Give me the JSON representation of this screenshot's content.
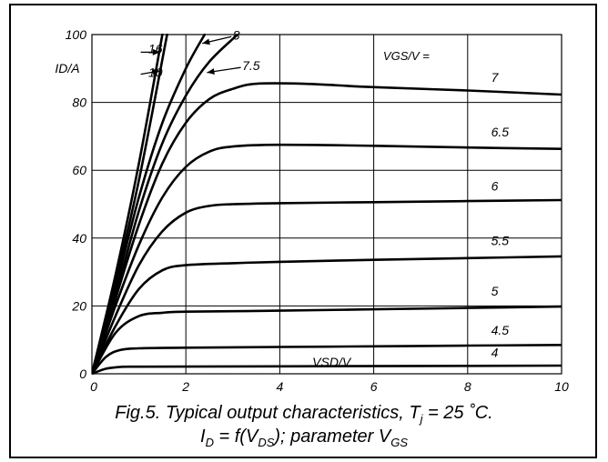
{
  "chart_data": {
    "type": "line",
    "title": "",
    "xlabel": "VSD/V",
    "ylabel": "ID/A",
    "xlim": [
      0,
      10
    ],
    "ylim": [
      0,
      100
    ],
    "x_ticks": [
      0,
      2,
      4,
      6,
      8,
      10
    ],
    "y_ticks": [
      0,
      20,
      40,
      60,
      80,
      100
    ],
    "grid": true,
    "legend_title": "VGS/V =",
    "series": [
      {
        "name": "16",
        "points": [
          [
            0,
            0
          ],
          [
            0.5,
            29
          ],
          [
            1,
            62
          ],
          [
            1.5,
            100
          ]
        ]
      },
      {
        "name": "10",
        "points": [
          [
            0,
            0
          ],
          [
            0.5,
            27
          ],
          [
            1,
            57
          ],
          [
            1.6,
            100
          ]
        ]
      },
      {
        "name": "8",
        "points": [
          [
            0,
            0
          ],
          [
            0.5,
            25
          ],
          [
            1,
            52
          ],
          [
            1.5,
            74
          ],
          [
            2,
            90
          ],
          [
            2.4,
            100
          ]
        ]
      },
      {
        "name": "7.5",
        "points": [
          [
            0,
            0
          ],
          [
            0.5,
            23
          ],
          [
            1,
            48
          ],
          [
            1.5,
            68
          ],
          [
            2,
            82
          ],
          [
            2.5,
            92
          ],
          [
            3.1,
            100
          ]
        ]
      },
      {
        "name": "7",
        "points": [
          [
            0,
            0
          ],
          [
            0.5,
            22
          ],
          [
            1,
            44
          ],
          [
            1.5,
            62
          ],
          [
            2,
            74
          ],
          [
            2.5,
            81
          ],
          [
            3,
            84
          ],
          [
            3.5,
            85.5
          ],
          [
            4.5,
            85.5
          ],
          [
            6,
            84.5
          ],
          [
            8,
            83.5
          ],
          [
            10,
            82.3
          ]
        ]
      },
      {
        "name": "6.5",
        "points": [
          [
            0,
            0
          ],
          [
            0.5,
            20
          ],
          [
            1,
            38
          ],
          [
            1.5,
            52
          ],
          [
            2,
            61
          ],
          [
            2.5,
            65.5
          ],
          [
            3,
            67
          ],
          [
            4,
            67.5
          ],
          [
            6,
            67.2
          ],
          [
            8,
            66.7
          ],
          [
            10,
            66.3
          ]
        ]
      },
      {
        "name": "6",
        "points": [
          [
            0,
            0
          ],
          [
            0.5,
            17
          ],
          [
            1,
            32
          ],
          [
            1.5,
            42
          ],
          [
            2,
            47.5
          ],
          [
            2.5,
            49.5
          ],
          [
            3,
            50
          ],
          [
            4,
            50.3
          ],
          [
            6,
            50.6
          ],
          [
            8,
            50.9
          ],
          [
            10,
            51.2
          ]
        ]
      },
      {
        "name": "5.5",
        "points": [
          [
            0,
            0
          ],
          [
            0.5,
            14
          ],
          [
            1,
            25
          ],
          [
            1.5,
            30.5
          ],
          [
            2,
            32
          ],
          [
            3,
            32.6
          ],
          [
            4,
            33
          ],
          [
            6,
            33.6
          ],
          [
            8,
            34.1
          ],
          [
            10,
            34.6
          ]
        ]
      },
      {
        "name": "5",
        "points": [
          [
            0,
            0
          ],
          [
            0.5,
            12
          ],
          [
            1,
            17
          ],
          [
            1.5,
            18
          ],
          [
            2,
            18.3
          ],
          [
            4,
            18.6
          ],
          [
            6,
            19
          ],
          [
            8,
            19.4
          ],
          [
            10,
            19.8
          ]
        ]
      },
      {
        "name": "4.5",
        "points": [
          [
            0,
            0
          ],
          [
            0.3,
            5
          ],
          [
            0.6,
            7
          ],
          [
            1,
            7.5
          ],
          [
            2,
            7.7
          ],
          [
            4,
            7.9
          ],
          [
            6,
            8.1
          ],
          [
            8,
            8.3
          ],
          [
            10,
            8.5
          ]
        ]
      },
      {
        "name": "4",
        "points": [
          [
            0,
            0
          ],
          [
            0.3,
            1.5
          ],
          [
            0.6,
            2
          ],
          [
            1,
            2.1
          ],
          [
            4,
            2.2
          ],
          [
            7,
            2.3
          ],
          [
            10,
            2.4
          ]
        ]
      }
    ],
    "curve_labels": [
      {
        "text": "16",
        "x": 1.2,
        "y": 94.5
      },
      {
        "text": "10",
        "x": 1.2,
        "y": 87.5
      },
      {
        "text": "8",
        "x": 3.0,
        "y": 98.5
      },
      {
        "text": "7.5",
        "x": 3.2,
        "y": 89.5
      },
      {
        "text": "7",
        "x": 8.5,
        "y": 86
      },
      {
        "text": "6.5",
        "x": 8.5,
        "y": 70
      },
      {
        "text": "6",
        "x": 8.5,
        "y": 54
      },
      {
        "text": "5.5",
        "x": 8.5,
        "y": 38
      },
      {
        "text": "5",
        "x": 8.5,
        "y": 23
      },
      {
        "text": "4.5",
        "x": 8.5,
        "y": 11.5
      },
      {
        "text": "4",
        "x": 8.5,
        "y": 5
      }
    ]
  },
  "caption": {
    "line1": {
      "text1": "Fig.5.  Typical output characteristics, T",
      "sub1": "j",
      "text2": " = 25 ˚C."
    },
    "line2": {
      "text1": "I",
      "sub1": "D",
      "text2": " = f(V",
      "sub2": "DS",
      "text3": "); parameter V",
      "sub3": "GS"
    }
  }
}
